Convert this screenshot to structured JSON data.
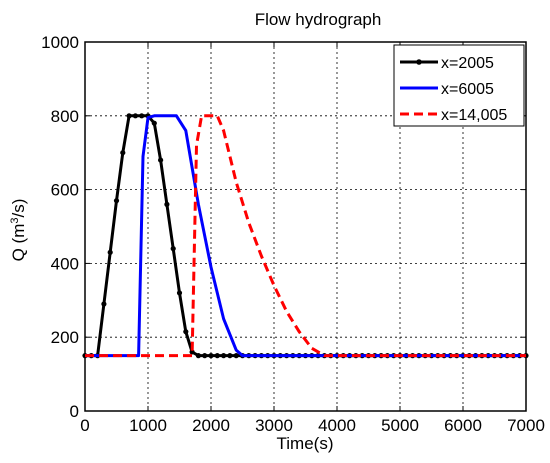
{
  "chart_data": {
    "type": "line",
    "title": "Flow hydrograph",
    "xlabel": "Time(s)",
    "ylabel_prefix": "Q (m",
    "ylabel_sup": "3",
    "ylabel_suffix": "/s)",
    "xlim": [
      0,
      7000
    ],
    "ylim": [
      0,
      1000
    ],
    "xticks": [
      0,
      1000,
      2000,
      3000,
      4000,
      5000,
      6000,
      7000
    ],
    "yticks": [
      0,
      200,
      400,
      600,
      800,
      1000
    ],
    "grid": true,
    "legend_position": "top-right",
    "series": [
      {
        "name": "x=2005",
        "color": "#000000",
        "style": "solid-markers",
        "x": [
          0,
          100,
          200,
          300,
          400,
          500,
          600,
          700,
          800,
          900,
          1000,
          1100,
          1200,
          1300,
          1400,
          1500,
          1600,
          1700,
          1800,
          1900,
          2000,
          2100,
          2200,
          2300,
          2400,
          2500,
          2600,
          2700,
          2800,
          2900,
          3000,
          3100,
          3200,
          3300,
          3400,
          3500,
          3600,
          3700,
          3800,
          3900,
          4000,
          4100,
          4200,
          4300,
          4400,
          4500,
          4600,
          4700,
          4800,
          4900,
          5000,
          5100,
          5200,
          5300,
          5400,
          5500,
          5600,
          5700,
          5800,
          5900,
          6000,
          6100,
          6200,
          6300,
          6400,
          6500,
          6600,
          6700,
          6800,
          6900,
          7000
        ],
        "y": [
          150,
          150,
          150,
          290,
          430,
          570,
          700,
          800,
          800,
          800,
          800,
          780,
          680,
          560,
          440,
          320,
          215,
          160,
          150,
          150,
          150,
          150,
          150,
          150,
          150,
          150,
          150,
          150,
          150,
          150,
          150,
          150,
          150,
          150,
          150,
          150,
          150,
          150,
          150,
          150,
          150,
          150,
          150,
          150,
          150,
          150,
          150,
          150,
          150,
          150,
          150,
          150,
          150,
          150,
          150,
          150,
          150,
          150,
          150,
          150,
          150,
          150,
          150,
          150,
          150,
          150,
          150,
          150,
          150,
          150,
          150
        ]
      },
      {
        "name": "x=6005",
        "color": "#0000ff",
        "style": "solid",
        "x": [
          0,
          850,
          920,
          1000,
          1100,
          1450,
          1600,
          1800,
          2000,
          2200,
          2400,
          2500,
          7000
        ],
        "y": [
          150,
          150,
          690,
          795,
          800,
          800,
          760,
          560,
          390,
          250,
          165,
          150,
          150
        ],
        "x_flat_end": 7000
      },
      {
        "name": "x=14,005",
        "color": "#ff0000",
        "style": "dashed",
        "x": [
          0,
          1700,
          1770,
          1850,
          2100,
          2200,
          2400,
          2600,
          2800,
          3000,
          3200,
          3400,
          3600,
          3800,
          7000
        ],
        "y": [
          150,
          150,
          720,
          800,
          800,
          760,
          620,
          510,
          420,
          340,
          270,
          215,
          170,
          150,
          150
        ]
      }
    ]
  }
}
